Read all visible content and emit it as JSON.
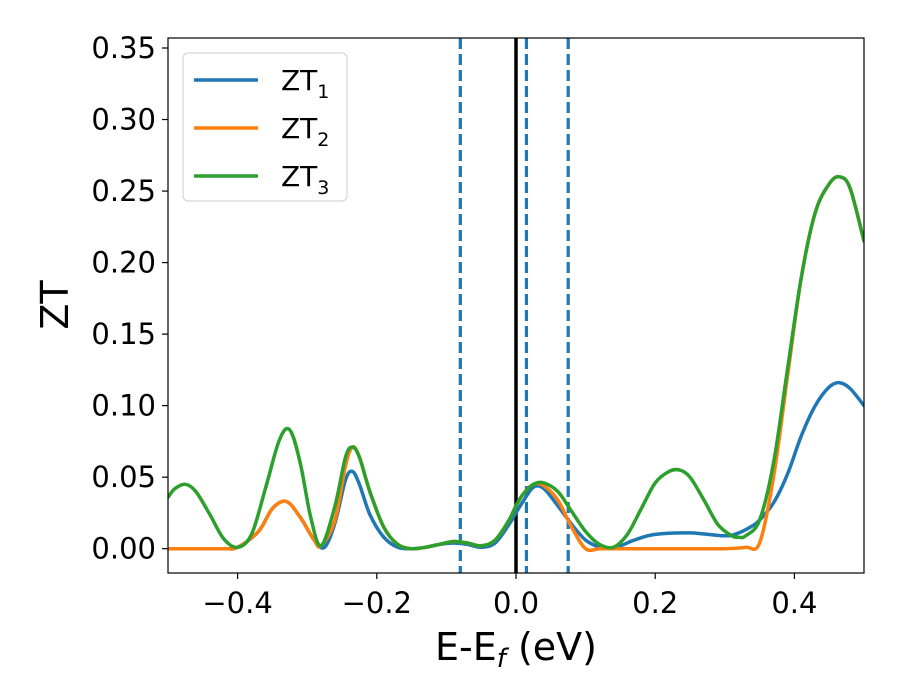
{
  "chart_data": {
    "type": "line",
    "xlabel": "E-E",
    "xlabel_sub": "f",
    "xlabel_unit": " (eV)",
    "ylabel": "ZT",
    "xlim": [
      -0.5,
      0.5
    ],
    "ylim": [
      -0.017,
      0.357
    ],
    "xticks": [
      -0.4,
      -0.2,
      0.0,
      0.2,
      0.4
    ],
    "xtick_labels": [
      "−0.4",
      "−0.2",
      "0.0",
      "0.2",
      "0.4"
    ],
    "yticks": [
      0.0,
      0.05,
      0.1,
      0.15,
      0.2,
      0.25,
      0.3,
      0.35
    ],
    "ytick_labels": [
      "0.00",
      "0.05",
      "0.10",
      "0.15",
      "0.20",
      "0.25",
      "0.30",
      "0.35"
    ],
    "grid": false,
    "legend_position": "top-left",
    "vertical_lines": [
      {
        "x": -0.08,
        "style": "dashed",
        "color": "#1f77b4"
      },
      {
        "x": 0.0,
        "style": "solid",
        "color": "#000000"
      },
      {
        "x": 0.015,
        "style": "dashed",
        "color": "#1f77b4"
      },
      {
        "x": 0.075,
        "style": "dashed",
        "color": "#1f77b4"
      }
    ],
    "series": [
      {
        "name": "ZT",
        "sub": "1",
        "color": "#1f77b4",
        "x": [
          -0.5,
          -0.48,
          -0.45,
          -0.42,
          -0.4,
          -0.37,
          -0.35,
          -0.33,
          -0.31,
          -0.29,
          -0.275,
          -0.26,
          -0.245,
          -0.235,
          -0.225,
          -0.21,
          -0.19,
          -0.17,
          -0.15,
          -0.13,
          -0.11,
          -0.09,
          -0.07,
          -0.05,
          -0.03,
          -0.01,
          0.0,
          0.01,
          0.025,
          0.04,
          0.06,
          0.08,
          0.1,
          0.12,
          0.13,
          0.15,
          0.17,
          0.2,
          0.25,
          0.3,
          0.32,
          0.34,
          0.35,
          0.37,
          0.39,
          0.41,
          0.43,
          0.45,
          0.465,
          0.48,
          0.5
        ],
        "y": [
          0.0,
          0.0,
          0.0,
          0.0,
          0.001,
          0.012,
          0.028,
          0.033,
          0.022,
          0.006,
          0.001,
          0.018,
          0.048,
          0.054,
          0.045,
          0.024,
          0.008,
          0.001,
          0.0,
          0.001,
          0.003,
          0.004,
          0.003,
          0.001,
          0.004,
          0.017,
          0.025,
          0.033,
          0.043,
          0.042,
          0.03,
          0.017,
          0.006,
          0.001,
          0.0,
          0.002,
          0.006,
          0.01,
          0.011,
          0.009,
          0.011,
          0.016,
          0.02,
          0.032,
          0.052,
          0.079,
          0.1,
          0.113,
          0.116,
          0.112,
          0.1
        ]
      },
      {
        "name": "ZT",
        "sub": "2",
        "color": "#ff7f0e",
        "x": [
          -0.5,
          -0.48,
          -0.45,
          -0.42,
          -0.4,
          -0.37,
          -0.35,
          -0.33,
          -0.31,
          -0.29,
          -0.28,
          -0.26,
          -0.245,
          -0.235,
          -0.225,
          -0.21,
          -0.19,
          -0.17,
          -0.15,
          -0.13,
          -0.11,
          -0.09,
          -0.07,
          -0.05,
          -0.03,
          -0.01,
          0.0,
          0.01,
          0.025,
          0.04,
          0.06,
          0.08,
          0.1,
          0.12,
          0.14,
          0.2,
          0.25,
          0.3,
          0.33,
          0.35,
          0.37,
          0.39,
          0.41,
          0.43,
          0.45,
          0.465,
          0.48,
          0.5
        ],
        "y": [
          0.0,
          0.0,
          0.0,
          0.0,
          0.001,
          0.012,
          0.028,
          0.033,
          0.022,
          0.006,
          0.002,
          0.02,
          0.058,
          0.071,
          0.064,
          0.04,
          0.015,
          0.003,
          0.0,
          0.001,
          0.003,
          0.005,
          0.004,
          0.002,
          0.006,
          0.02,
          0.03,
          0.038,
          0.045,
          0.044,
          0.034,
          0.015,
          0.0,
          0.0,
          0.0,
          0.0,
          0.0,
          0.0,
          0.001,
          0.004,
          0.05,
          0.12,
          0.19,
          0.235,
          0.255,
          0.26,
          0.252,
          0.215
        ]
      },
      {
        "name": "ZT",
        "sub": "3",
        "color": "#2ca02c",
        "x": [
          -0.5,
          -0.49,
          -0.475,
          -0.46,
          -0.44,
          -0.42,
          -0.4,
          -0.38,
          -0.36,
          -0.34,
          -0.325,
          -0.31,
          -0.295,
          -0.28,
          -0.26,
          -0.245,
          -0.235,
          -0.225,
          -0.21,
          -0.19,
          -0.17,
          -0.15,
          -0.13,
          -0.11,
          -0.09,
          -0.07,
          -0.05,
          -0.03,
          -0.01,
          0.0,
          0.01,
          0.025,
          0.04,
          0.06,
          0.08,
          0.1,
          0.12,
          0.14,
          0.16,
          0.18,
          0.2,
          0.22,
          0.235,
          0.25,
          0.27,
          0.29,
          0.31,
          0.32,
          0.33,
          0.35,
          0.37,
          0.39,
          0.41,
          0.43,
          0.45,
          0.465,
          0.48,
          0.5
        ],
        "y": [
          0.036,
          0.042,
          0.045,
          0.04,
          0.024,
          0.007,
          0.001,
          0.01,
          0.042,
          0.076,
          0.083,
          0.06,
          0.022,
          0.002,
          0.03,
          0.064,
          0.071,
          0.064,
          0.04,
          0.015,
          0.003,
          0.0,
          0.001,
          0.003,
          0.005,
          0.004,
          0.002,
          0.006,
          0.02,
          0.03,
          0.038,
          0.045,
          0.046,
          0.04,
          0.026,
          0.012,
          0.003,
          0.001,
          0.01,
          0.028,
          0.046,
          0.054,
          0.055,
          0.05,
          0.034,
          0.017,
          0.009,
          0.008,
          0.009,
          0.02,
          0.06,
          0.125,
          0.19,
          0.235,
          0.255,
          0.26,
          0.252,
          0.215
        ]
      }
    ]
  }
}
